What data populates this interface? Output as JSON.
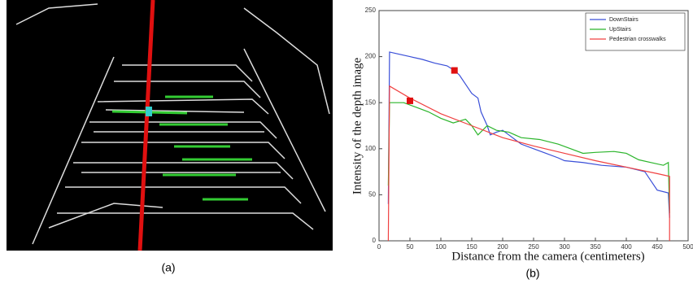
{
  "image_caption": "(a)",
  "chart_data": {
    "type": "line",
    "caption": "(b)",
    "x_label": "Distance from the camera (centimeters)",
    "y_label": "Intensity of the depth image",
    "xlim": [
      0,
      500
    ],
    "xticks": [
      0,
      50,
      100,
      150,
      200,
      250,
      300,
      350,
      400,
      450,
      500
    ],
    "ylim": [
      0,
      250
    ],
    "yticks": [
      0,
      50,
      100,
      150,
      200,
      250
    ],
    "legend": "upper right",
    "series": [
      {
        "name": "DownStairs",
        "color": "#3a4fd8",
        "x": [
          15,
          17,
          30,
          50,
          70,
          90,
          110,
          122,
          130,
          140,
          150,
          160,
          165,
          175,
          180,
          190,
          200,
          210,
          230,
          250,
          270,
          290,
          300,
          330,
          360,
          400,
          430,
          440,
          450,
          468,
          470
        ],
        "values": [
          40,
          205,
          203,
          200,
          197,
          193,
          190,
          185,
          180,
          170,
          160,
          155,
          140,
          125,
          115,
          118,
          120,
          115,
          105,
          100,
          95,
          90,
          87,
          85,
          82,
          80,
          75,
          65,
          55,
          52,
          25
        ]
      },
      {
        "name": "UpStairs",
        "color": "#2bb52b",
        "x": [
          15,
          17,
          40,
          60,
          80,
          100,
          120,
          140,
          150,
          160,
          175,
          190,
          210,
          230,
          260,
          290,
          310,
          330,
          350,
          380,
          400,
          420,
          440,
          460,
          468,
          470
        ],
        "values": [
          60,
          150,
          150,
          145,
          140,
          133,
          128,
          132,
          125,
          115,
          125,
          120,
          118,
          112,
          110,
          105,
          100,
          95,
          96,
          97,
          95,
          88,
          85,
          82,
          85,
          30
        ]
      },
      {
        "name": "Pedestrian crosswalks",
        "color": "#f04040",
        "x": [
          15,
          17,
          50,
          100,
          150,
          200,
          250,
          300,
          350,
          400,
          450,
          470,
          470
        ],
        "values": [
          0,
          168,
          155,
          138,
          125,
          112,
          103,
          95,
          87,
          80,
          73,
          70,
          0
        ]
      }
    ],
    "markers": {
      "color": "#e01010",
      "x": [
        50,
        122
      ],
      "values": [
        152,
        185
      ]
    }
  }
}
